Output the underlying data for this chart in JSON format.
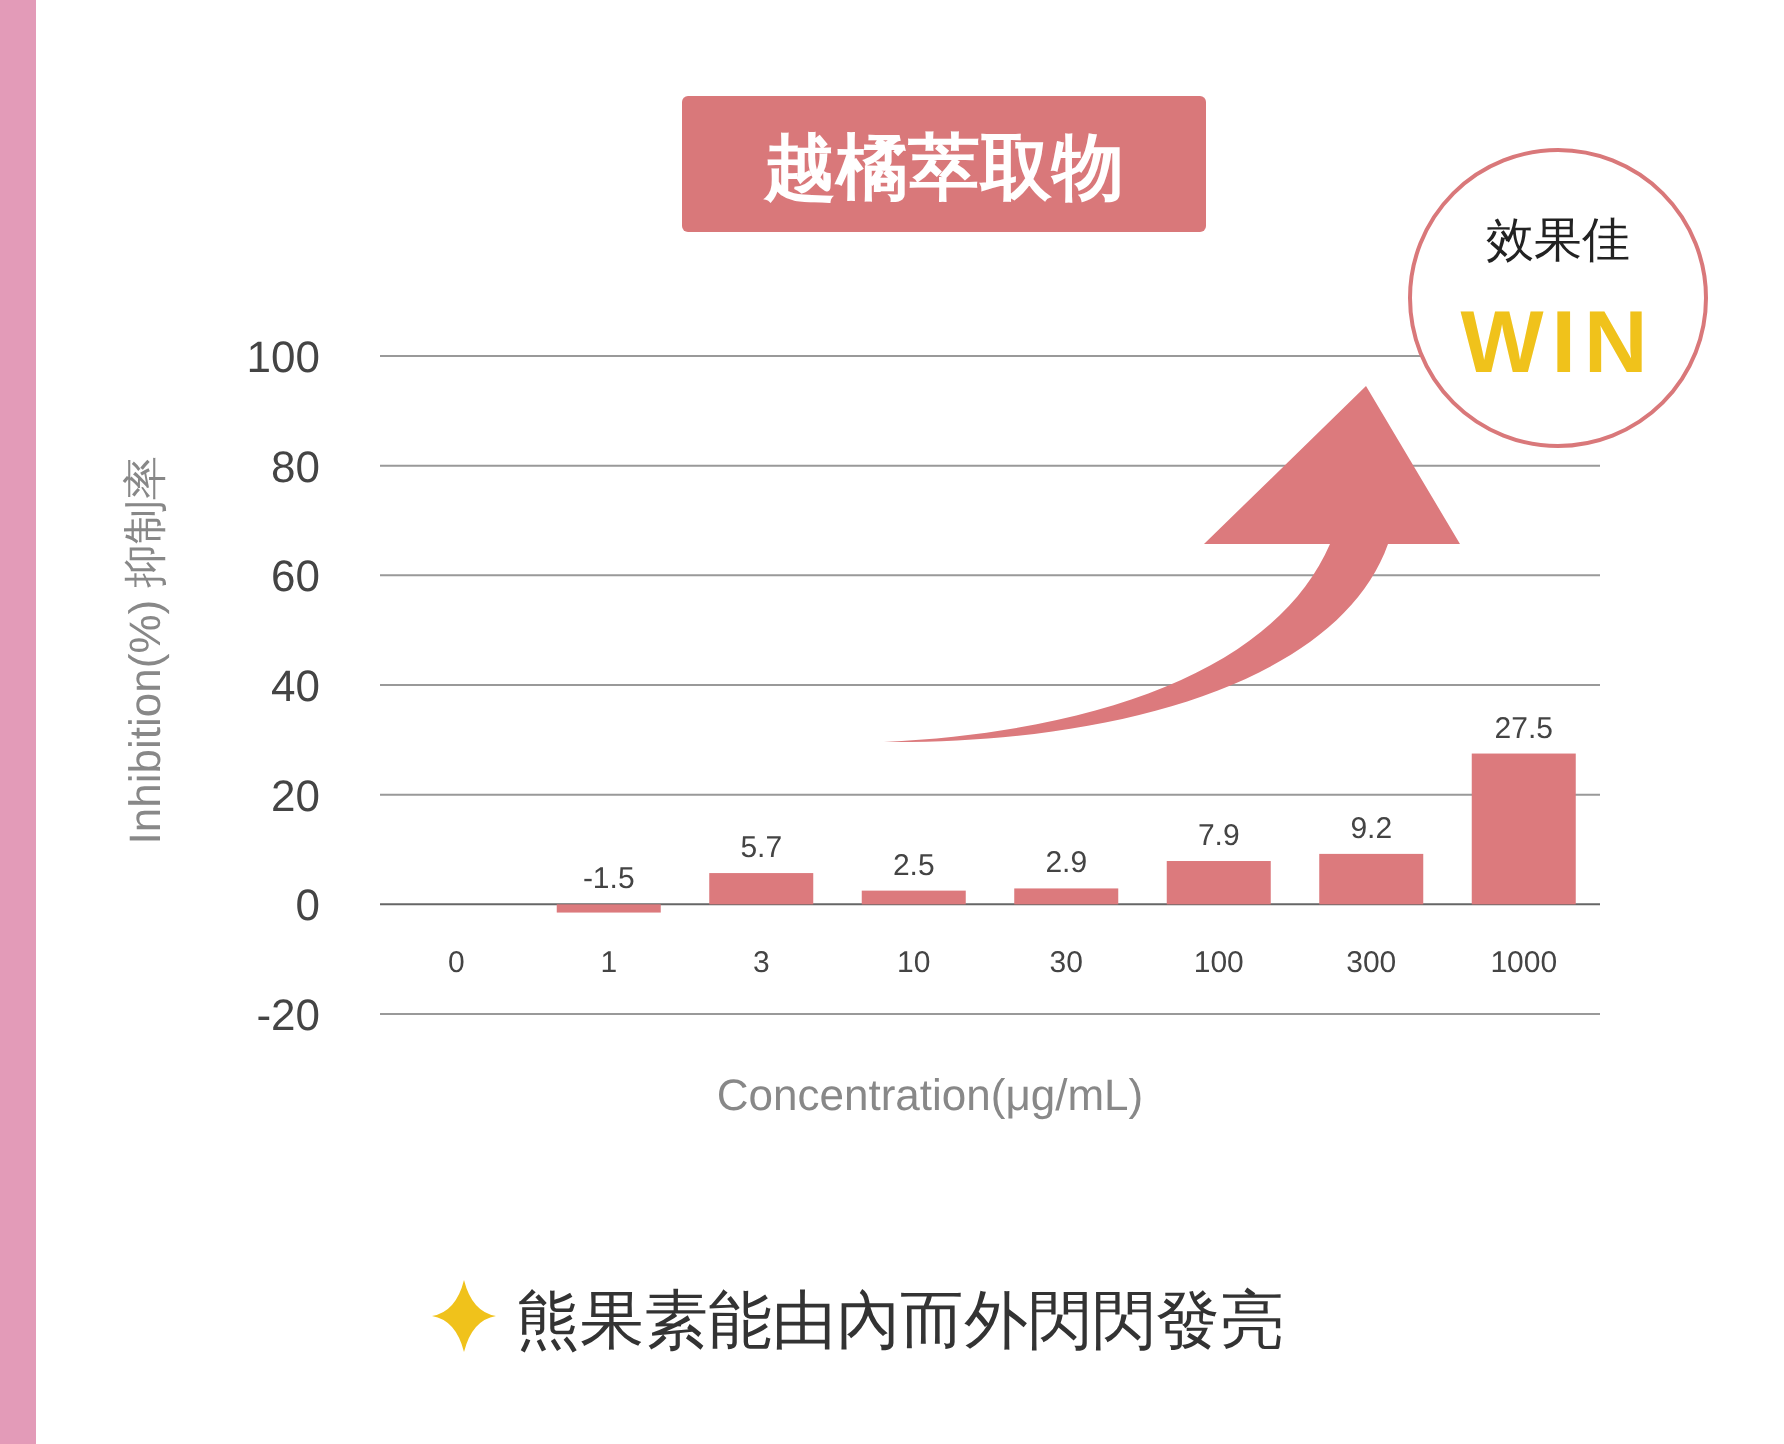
{
  "chart_data": {
    "type": "bar",
    "title": "越橘萃取物",
    "categories": [
      "0",
      "1",
      "3",
      "10",
      "30",
      "100",
      "300",
      "1000"
    ],
    "values": [
      null,
      -1.5,
      5.7,
      2.5,
      2.9,
      7.9,
      9.2,
      27.5
    ],
    "color": "#dc7a7d",
    "ylim": [
      -20,
      100
    ],
    "yticks": [
      -20,
      0,
      20,
      40,
      60,
      80,
      100
    ],
    "grid": "y",
    "data_labels": true,
    "xlabel": "Concentration(μg/mL)",
    "ylabel": "Inhibition(%)  抑制率",
    "annotations": [
      "效果佳",
      "WIN",
      "熊果素能由內而外閃閃發亮"
    ]
  }
}
